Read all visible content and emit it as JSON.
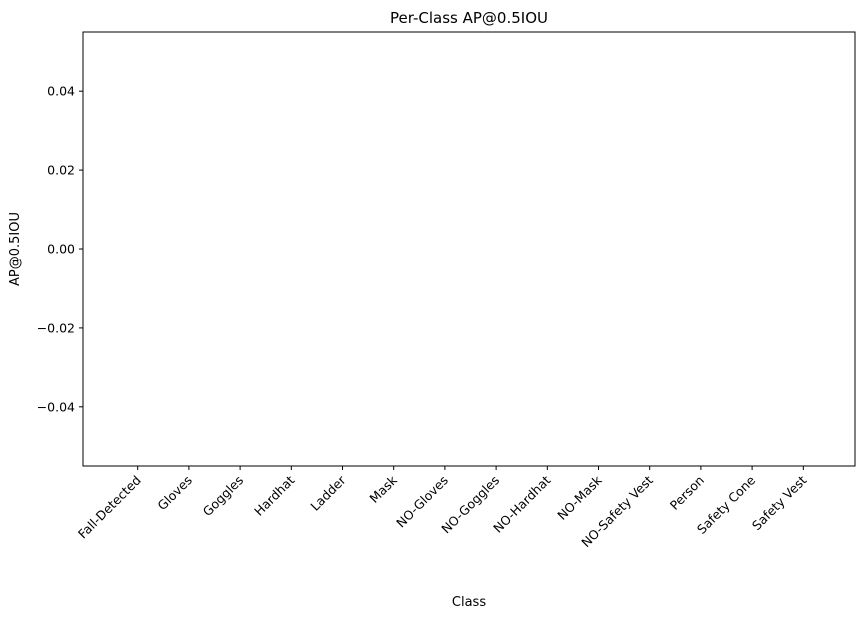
{
  "chart_data": {
    "type": "bar",
    "title": "Per-Class AP@0.5IOU",
    "xlabel": "Class",
    "ylabel": "AP@0.5IOU",
    "categories": [
      "Fall-Detected",
      "Gloves",
      "Goggles",
      "Hardhat",
      "Ladder",
      "Mask",
      "NO-Gloves",
      "NO-Goggles",
      "NO-Hardhat",
      "NO-Mask",
      "NO-Safety Vest",
      "Person",
      "Safety Cone",
      "Safety Vest"
    ],
    "values": [
      0,
      0,
      0,
      0,
      0,
      0,
      0,
      0,
      0,
      0,
      0,
      0,
      0,
      0
    ],
    "ylim": [
      -0.055,
      0.055
    ],
    "yticks": [
      -0.04,
      -0.02,
      0.0,
      0.02,
      0.04
    ],
    "ytick_labels": [
      "−0.04",
      "−0.02",
      "0.00",
      "0.02",
      "0.04"
    ],
    "grid": false,
    "bar_color": "#1f77b4"
  }
}
